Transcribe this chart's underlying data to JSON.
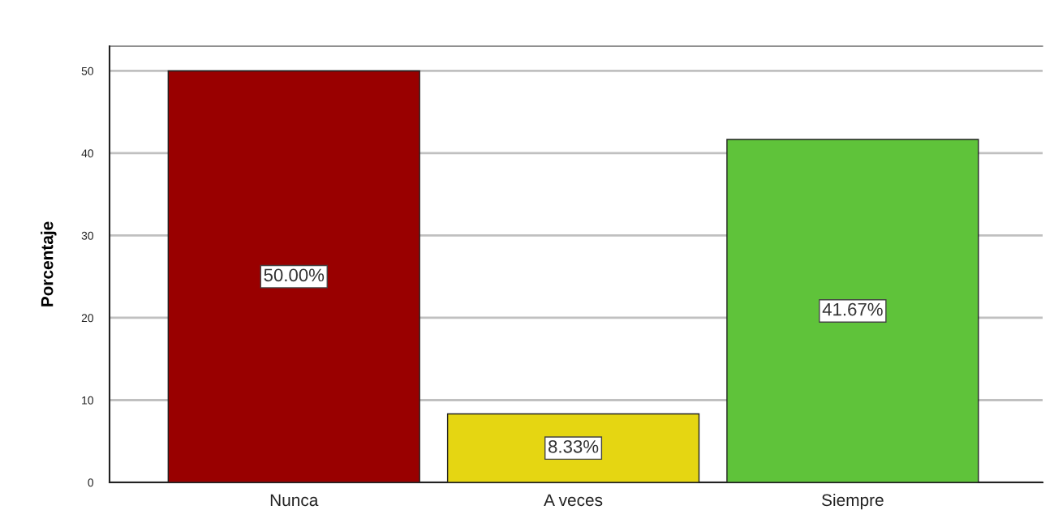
{
  "chart_data": {
    "type": "bar",
    "ylabel": "Porcentaje",
    "categories": [
      "Nunca",
      "A veces",
      "Siempre"
    ],
    "values": [
      50,
      8.33,
      41.67
    ],
    "colors": [
      "#990000",
      "#e5d612",
      "#5fc33a"
    ],
    "value_labels": [
      "50.00%",
      "8.33%",
      "41.67%"
    ],
    "ylim": [
      0,
      53
    ],
    "yticks": [
      0,
      10,
      20,
      30,
      40,
      50
    ],
    "grid": "y",
    "legend": false
  }
}
